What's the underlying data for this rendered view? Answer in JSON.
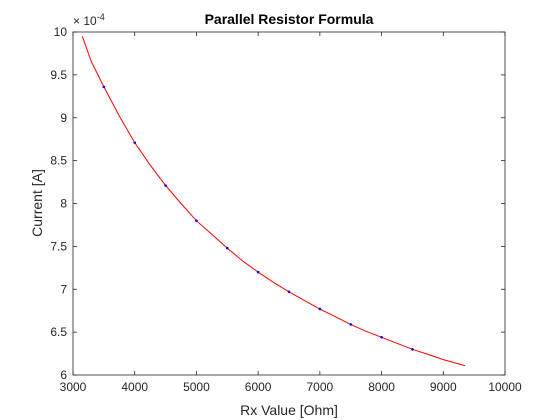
{
  "chart_data": {
    "type": "line",
    "title": "Parallel Resistor Formula",
    "xlabel": "Rx Value [Ohm]",
    "ylabel": "Current [A]",
    "xlim": [
      3000,
      10000
    ],
    "ylim": [
      6,
      10
    ],
    "y_exponent_label": "× 10",
    "y_exponent_power": "-4",
    "xticks": [
      3000,
      4000,
      5000,
      6000,
      7000,
      8000,
      9000,
      10000
    ],
    "yticks": [
      6,
      6.5,
      7,
      7.5,
      8,
      8.5,
      9,
      9.5,
      10
    ],
    "grid": false,
    "series": [
      {
        "kind": "line",
        "color": "#ff0000",
        "x": [
          3150,
          3300,
          3500,
          3750,
          4000,
          4250,
          4500,
          4750,
          5000,
          5250,
          5500,
          5750,
          6000,
          6250,
          6500,
          6750,
          7000,
          7250,
          7500,
          7750,
          8000,
          8250,
          8500,
          8750,
          9000,
          9350
        ],
        "y": [
          9.95,
          9.65,
          9.36,
          9.02,
          8.71,
          8.45,
          8.21,
          8.0,
          7.8,
          7.64,
          7.48,
          7.33,
          7.2,
          7.08,
          6.97,
          6.87,
          6.77,
          6.68,
          6.59,
          6.51,
          6.44,
          6.37,
          6.3,
          6.24,
          6.18,
          6.11
        ]
      },
      {
        "kind": "points",
        "color": "#0000ff",
        "x": [
          3500,
          4000,
          4500,
          5000,
          5500,
          6000,
          6500,
          7000,
          7500,
          8000,
          8500
        ],
        "y": [
          9.36,
          8.71,
          8.21,
          7.8,
          7.48,
          7.2,
          6.97,
          6.77,
          6.59,
          6.44,
          6.3
        ]
      }
    ]
  }
}
